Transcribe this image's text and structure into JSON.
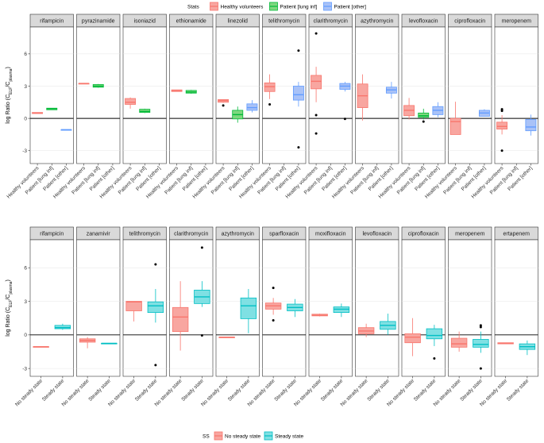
{
  "legend_top": {
    "title": "Stats",
    "entries": [
      {
        "label": "Healthy volunteers",
        "fill": "#f8a6a0",
        "stroke": "#f8766d"
      },
      {
        "label": "Patient [lung inf]",
        "fill": "#7fd77f",
        "stroke": "#00ba38"
      },
      {
        "label": "Patient [other]",
        "fill": "#a9c2f7",
        "stroke": "#619cff"
      }
    ]
  },
  "legend_bottom": {
    "title": "SS",
    "entries": [
      {
        "label": "No steady state",
        "fill": "#f8a6a0",
        "stroke": "#f8766d"
      },
      {
        "label": "Steady state",
        "fill": "#7fe0e3",
        "stroke": "#00bfc4"
      }
    ]
  },
  "chart_data": [
    {
      "type": "boxplot",
      "ylabel_main": "log Ratio (C",
      "ylabel_sub1": "ELF",
      "ylabel_mid": "/C",
      "ylabel_sub2": "plasma",
      "ylabel_end": ")",
      "ylim": [
        -4.2,
        8.5
      ],
      "yticks": [
        -3,
        0,
        3,
        6
      ],
      "ytick_labels": [
        "-3",
        "0",
        "3",
        "6"
      ],
      "categories": [
        "Healthy volunteers",
        "Patient [lung inf]",
        "Patient [other]"
      ],
      "category_colors": [
        "#f8766d",
        "#00ba38",
        "#619cff"
      ],
      "category_fills": [
        "#f8a6a0",
        "#7fd77f",
        "#a9c2f7"
      ],
      "panels": [
        {
          "title": "rifampicin",
          "boxes": [
            {
              "cat": 0,
              "q1": 0.45,
              "med": 0.5,
              "q3": 0.55,
              "lo": 0.45,
              "hi": 0.55,
              "out": []
            },
            {
              "cat": 1,
              "q1": 0.8,
              "med": 0.9,
              "q3": 0.95,
              "lo": 0.8,
              "hi": 0.95,
              "out": []
            },
            {
              "cat": 2,
              "q1": -1.05,
              "med": -1.05,
              "q3": -1.05,
              "lo": -1.05,
              "hi": -1.05,
              "out": []
            }
          ]
        },
        {
          "title": "pyrazinamide",
          "boxes": [
            {
              "cat": 0,
              "q1": 3.25,
              "med": 3.25,
              "q3": 3.25,
              "lo": 3.25,
              "hi": 3.25,
              "out": []
            },
            {
              "cat": 1,
              "q1": 2.9,
              "med": 3.0,
              "q3": 3.15,
              "lo": 2.85,
              "hi": 3.2,
              "out": []
            }
          ]
        },
        {
          "title": "isoniazid",
          "boxes": [
            {
              "cat": 0,
              "q1": 1.3,
              "med": 1.5,
              "q3": 1.85,
              "lo": 0.9,
              "hi": 1.95,
              "out": []
            },
            {
              "cat": 1,
              "q1": 0.55,
              "med": 0.65,
              "q3": 0.85,
              "lo": 0.5,
              "hi": 0.9,
              "out": []
            }
          ]
        },
        {
          "title": "ethionamide",
          "boxes": [
            {
              "cat": 0,
              "q1": 2.5,
              "med": 2.6,
              "q3": 2.65,
              "lo": 2.5,
              "hi": 2.65,
              "out": []
            },
            {
              "cat": 1,
              "q1": 2.35,
              "med": 2.45,
              "q3": 2.6,
              "lo": 2.3,
              "hi": 2.65,
              "out": []
            }
          ]
        },
        {
          "title": "linezolid",
          "boxes": [
            {
              "cat": 0,
              "q1": 1.5,
              "med": 1.65,
              "q3": 1.75,
              "lo": 1.45,
              "hi": 1.75,
              "out": [
                1.2
              ]
            },
            {
              "cat": 1,
              "q1": -0.05,
              "med": 0.35,
              "q3": 0.75,
              "lo": -0.4,
              "hi": 1.1,
              "out": []
            },
            {
              "cat": 2,
              "q1": 0.75,
              "med": 1.0,
              "q3": 1.35,
              "lo": 0.55,
              "hi": 1.7,
              "out": []
            }
          ]
        },
        {
          "title": "telithromycin",
          "boxes": [
            {
              "cat": 0,
              "q1": 2.5,
              "med": 2.95,
              "q3": 3.3,
              "lo": 1.8,
              "hi": 4.1,
              "out": [
                1.3
              ]
            },
            {
              "cat": 2,
              "q1": 1.7,
              "med": 2.2,
              "q3": 3.0,
              "lo": 1.1,
              "hi": 3.4,
              "out": [
                6.3,
                -2.7
              ]
            }
          ]
        },
        {
          "title": "clarithromycin",
          "boxes": [
            {
              "cat": 0,
              "q1": 2.75,
              "med": 3.45,
              "q3": 4.0,
              "lo": 1.5,
              "hi": 4.8,
              "out": [
                7.9,
                0.3,
                -1.4
              ]
            },
            {
              "cat": 2,
              "q1": 2.7,
              "med": 3.0,
              "q3": 3.25,
              "lo": 2.5,
              "hi": 3.4,
              "out": [
                -0.05
              ]
            }
          ]
        },
        {
          "title": "azythromycin",
          "boxes": [
            {
              "cat": 0,
              "q1": 1.0,
              "med": 2.1,
              "q3": 3.2,
              "lo": -0.2,
              "hi": 4.1,
              "out": []
            },
            {
              "cat": 2,
              "q1": 2.35,
              "med": 2.65,
              "q3": 2.9,
              "lo": 1.85,
              "hi": 3.4,
              "out": []
            }
          ]
        },
        {
          "title": "levofloxacin",
          "boxes": [
            {
              "cat": 0,
              "q1": 0.25,
              "med": 0.75,
              "q3": 1.2,
              "lo": -0.1,
              "hi": 1.9,
              "out": []
            },
            {
              "cat": 1,
              "q1": 0.1,
              "med": 0.25,
              "q3": 0.5,
              "lo": -0.1,
              "hi": 0.9,
              "out": [
                -0.3
              ]
            },
            {
              "cat": 2,
              "q1": 0.35,
              "med": 0.75,
              "q3": 1.1,
              "lo": 0.1,
              "hi": 1.5,
              "out": []
            }
          ]
        },
        {
          "title": "ciprofloxacin",
          "boxes": [
            {
              "cat": 0,
              "q1": -1.5,
              "med": -0.3,
              "q3": 0.0,
              "lo": -1.5,
              "hi": 1.55,
              "out": []
            },
            {
              "cat": 2,
              "q1": 0.2,
              "med": 0.5,
              "q3": 0.75,
              "lo": 0.2,
              "hi": 0.85,
              "out": []
            }
          ]
        },
        {
          "title": "meropenem",
          "boxes": [
            {
              "cat": 0,
              "q1": -1.0,
              "med": -0.75,
              "q3": -0.35,
              "lo": -1.5,
              "hi": 0.3,
              "out": [
                0.85,
                0.7,
                -3.0
              ]
            },
            {
              "cat": 2,
              "q1": -1.15,
              "med": -0.8,
              "q3": -0.1,
              "lo": -1.6,
              "hi": 0.35,
              "out": []
            }
          ]
        }
      ]
    },
    {
      "type": "boxplot",
      "ylabel_main": "log Ratio (C",
      "ylabel_sub1": "ELF",
      "ylabel_mid": "/C",
      "ylabel_sub2": "plasma",
      "ylabel_end": ")",
      "ylim": [
        -3.7,
        8.5
      ],
      "yticks": [
        -3,
        0,
        3,
        6
      ],
      "ytick_labels": [
        "-3",
        "0",
        "3",
        "6"
      ],
      "categories": [
        "No steady state",
        "Steady state"
      ],
      "category_colors": [
        "#f8766d",
        "#00bfc4"
      ],
      "category_fills": [
        "#f8a6a0",
        "#7fe0e3"
      ],
      "panels": [
        {
          "title": "rifampicin",
          "boxes": [
            {
              "cat": 0,
              "q1": -1.05,
              "med": -1.05,
              "q3": -1.05,
              "lo": -1.05,
              "hi": -1.05,
              "out": []
            },
            {
              "cat": 1,
              "q1": 0.55,
              "med": 0.65,
              "q3": 0.85,
              "lo": 0.45,
              "hi": 1.0,
              "out": []
            }
          ]
        },
        {
          "title": "zanamivir",
          "boxes": [
            {
              "cat": 0,
              "q1": -0.65,
              "med": -0.5,
              "q3": -0.35,
              "lo": -1.2,
              "hi": -0.2,
              "out": []
            },
            {
              "cat": 1,
              "q1": -0.75,
              "med": -0.75,
              "q3": -0.75,
              "lo": -0.75,
              "hi": -0.75,
              "out": []
            }
          ]
        },
        {
          "title": "telithromycin",
          "boxes": [
            {
              "cat": 0,
              "q1": 2.15,
              "med": 2.95,
              "q3": 3.0,
              "lo": 1.2,
              "hi": 3.0,
              "out": []
            },
            {
              "cat": 1,
              "q1": 2.0,
              "med": 2.6,
              "q3": 2.95,
              "lo": 1.1,
              "hi": 4.1,
              "out": [
                6.3,
                -2.7
              ]
            }
          ]
        },
        {
          "title": "clarithromycin",
          "boxes": [
            {
              "cat": 0,
              "q1": 0.3,
              "med": 1.6,
              "q3": 2.45,
              "lo": -1.4,
              "hi": 4.8,
              "out": []
            },
            {
              "cat": 1,
              "q1": 2.8,
              "med": 3.4,
              "q3": 4.0,
              "lo": 2.5,
              "hi": 4.8,
              "out": [
                7.8,
                -0.05
              ]
            }
          ]
        },
        {
          "title": "azythromycin",
          "boxes": [
            {
              "cat": 0,
              "q1": -0.2,
              "med": -0.2,
              "q3": -0.2,
              "lo": -0.2,
              "hi": -0.2,
              "out": []
            },
            {
              "cat": 1,
              "q1": 1.45,
              "med": 2.6,
              "q3": 3.3,
              "lo": 0.15,
              "hi": 4.1,
              "out": []
            }
          ]
        },
        {
          "title": "sparfloxacin",
          "boxes": [
            {
              "cat": 0,
              "q1": 2.3,
              "med": 2.6,
              "q3": 2.85,
              "lo": 1.8,
              "hi": 3.3,
              "out": [
                4.2,
                1.3
              ]
            },
            {
              "cat": 1,
              "q1": 2.15,
              "med": 2.45,
              "q3": 2.75,
              "lo": 1.6,
              "hi": 3.2,
              "out": []
            }
          ]
        },
        {
          "title": "moxifloxacin",
          "boxes": [
            {
              "cat": 0,
              "q1": 1.7,
              "med": 1.75,
              "q3": 1.85,
              "lo": 1.65,
              "hi": 1.9,
              "out": []
            },
            {
              "cat": 1,
              "q1": 2.0,
              "med": 2.3,
              "q3": 2.5,
              "lo": 1.6,
              "hi": 2.8,
              "out": []
            }
          ]
        },
        {
          "title": "levofloxacin",
          "boxes": [
            {
              "cat": 0,
              "q1": 0.1,
              "med": 0.35,
              "q3": 0.65,
              "lo": -0.2,
              "hi": 1.0,
              "out": []
            },
            {
              "cat": 1,
              "q1": 0.5,
              "med": 0.85,
              "q3": 1.2,
              "lo": 0.0,
              "hi": 1.9,
              "out": []
            }
          ]
        },
        {
          "title": "ciprofloxacin",
          "boxes": [
            {
              "cat": 0,
              "q1": -0.7,
              "med": -0.2,
              "q3": 0.1,
              "lo": -1.9,
              "hi": 1.5,
              "out": []
            },
            {
              "cat": 1,
              "q1": -0.35,
              "med": -0.05,
              "q3": 0.55,
              "lo": -1.0,
              "hi": 0.9,
              "out": [
                -2.1
              ]
            }
          ]
        },
        {
          "title": "meropenem",
          "boxes": [
            {
              "cat": 0,
              "q1": -1.1,
              "med": -0.8,
              "q3": -0.3,
              "lo": -1.5,
              "hi": 0.3,
              "out": []
            },
            {
              "cat": 1,
              "q1": -1.1,
              "med": -0.85,
              "q3": -0.4,
              "lo": -1.6,
              "hi": 0.3,
              "out": [
                0.85,
                0.7,
                -3.0
              ]
            }
          ]
        },
        {
          "title": "ertapenem",
          "boxes": [
            {
              "cat": 0,
              "q1": -0.8,
              "med": -0.75,
              "q3": -0.7,
              "lo": -0.8,
              "hi": -0.7,
              "out": []
            },
            {
              "cat": 1,
              "q1": -1.3,
              "med": -1.05,
              "q3": -0.8,
              "lo": -1.8,
              "hi": -0.5,
              "out": []
            }
          ]
        }
      ]
    }
  ]
}
